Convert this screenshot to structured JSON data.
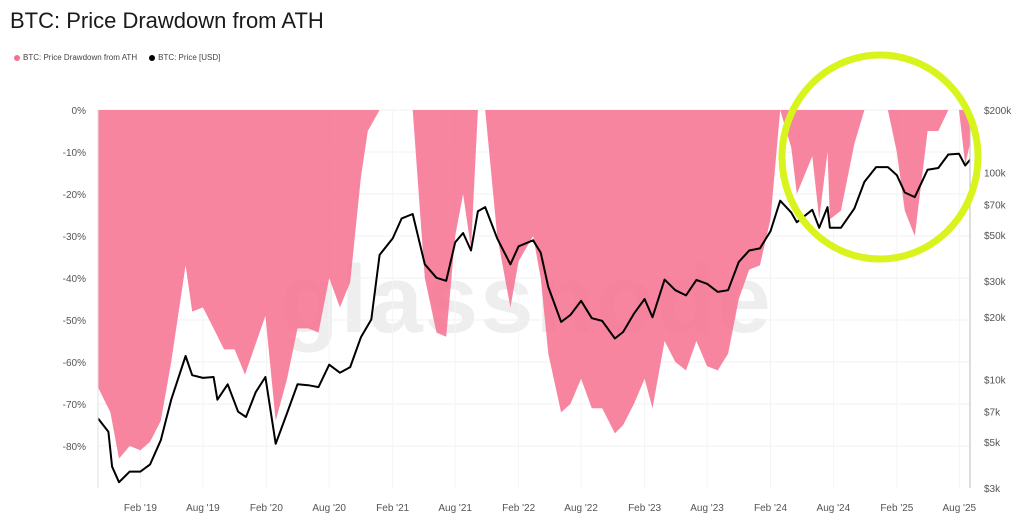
{
  "chart_data": {
    "type": "area",
    "title": "BTC: Price Drawdown from ATH",
    "legend": [
      {
        "label": "BTC: Price Drawdown from ATH",
        "color": "#f6708f"
      },
      {
        "label": "BTC: Price [USD]",
        "color": "#000000"
      }
    ],
    "x_ticks": [
      "Feb '19",
      "Aug '19",
      "Feb '20",
      "Aug '20",
      "Feb '21",
      "Aug '21",
      "Feb '22",
      "Aug '22",
      "Feb '23",
      "Aug '23",
      "Feb '24",
      "Aug '24",
      "Feb '25",
      "Aug '25"
    ],
    "y_left_ticks": [
      "0%",
      "-10%",
      "-20%",
      "-30%",
      "-40%",
      "-50%",
      "-60%",
      "-70%",
      "-80%"
    ],
    "y_right_ticks": [
      "$200k",
      "100k",
      "$70k",
      "$50k",
      "$30k",
      "$20k",
      "$10k",
      "$7k",
      "$5k",
      "$3k"
    ],
    "y_left_range": [
      -90,
      0
    ],
    "y_right_scale": "log",
    "y_right_range": [
      3000,
      200000
    ],
    "x_range": [
      "2018-10-15",
      "2025-09-15"
    ],
    "series": [
      {
        "name": "BTC: Price Drawdown from ATH",
        "unit": "%",
        "points": [
          [
            "2018-10-15",
            -66
          ],
          [
            "2018-11-20",
            -72
          ],
          [
            "2018-12-15",
            -83
          ],
          [
            "2019-01-15",
            -80
          ],
          [
            "2019-02-15",
            -81
          ],
          [
            "2019-03-15",
            -79
          ],
          [
            "2019-04-15",
            -74
          ],
          [
            "2019-05-15",
            -60
          ],
          [
            "2019-06-26",
            -37
          ],
          [
            "2019-07-15",
            -48
          ],
          [
            "2019-08-15",
            -47
          ],
          [
            "2019-09-15",
            -52
          ],
          [
            "2019-10-15",
            -57
          ],
          [
            "2019-11-15",
            -57
          ],
          [
            "2019-12-15",
            -63
          ],
          [
            "2020-02-12",
            -49
          ],
          [
            "2020-03-13",
            -74
          ],
          [
            "2020-04-15",
            -64
          ],
          [
            "2020-05-15",
            -52
          ],
          [
            "2020-06-15",
            -52
          ],
          [
            "2020-07-15",
            -53
          ],
          [
            "2020-08-15",
            -40
          ],
          [
            "2020-09-15",
            -47
          ],
          [
            "2020-10-15",
            -41
          ],
          [
            "2020-11-15",
            -16
          ],
          [
            "2020-12-05",
            -5
          ],
          [
            "2021-01-08",
            0
          ],
          [
            "2021-02-15",
            0
          ],
          [
            "2021-03-13",
            0
          ],
          [
            "2021-04-14",
            0
          ],
          [
            "2021-05-19",
            -40
          ],
          [
            "2021-06-22",
            -53
          ],
          [
            "2021-07-20",
            -54
          ],
          [
            "2021-08-15",
            -30
          ],
          [
            "2021-09-07",
            -20
          ],
          [
            "2021-09-30",
            -33
          ],
          [
            "2021-10-20",
            0
          ],
          [
            "2021-11-10",
            0
          ],
          [
            "2021-12-15",
            -30
          ],
          [
            "2022-01-22",
            -47
          ],
          [
            "2022-02-15",
            -36
          ],
          [
            "2022-03-29",
            -30
          ],
          [
            "2022-04-20",
            -40
          ],
          [
            "2022-05-12",
            -58
          ],
          [
            "2022-06-18",
            -72
          ],
          [
            "2022-07-15",
            -70
          ],
          [
            "2022-08-15",
            -64
          ],
          [
            "2022-09-15",
            -71
          ],
          [
            "2022-10-15",
            -71
          ],
          [
            "2022-11-21",
            -77
          ],
          [
            "2022-12-15",
            -75
          ],
          [
            "2023-01-15",
            -70
          ],
          [
            "2023-02-15",
            -64
          ],
          [
            "2023-03-10",
            -71
          ],
          [
            "2023-04-14",
            -55
          ],
          [
            "2023-05-15",
            -60
          ],
          [
            "2023-06-15",
            -62
          ],
          [
            "2023-07-15",
            -55
          ],
          [
            "2023-08-15",
            -61
          ],
          [
            "2023-09-15",
            -62
          ],
          [
            "2023-10-15",
            -58
          ],
          [
            "2023-11-15",
            -45
          ],
          [
            "2023-12-15",
            -38
          ],
          [
            "2024-01-15",
            -37
          ],
          [
            "2024-02-15",
            -26
          ],
          [
            "2024-03-14",
            0
          ],
          [
            "2024-04-15",
            -9
          ],
          [
            "2024-05-01",
            -20
          ],
          [
            "2024-06-15",
            -11
          ],
          [
            "2024-07-05",
            -26
          ],
          [
            "2024-07-29",
            -10
          ],
          [
            "2024-08-05",
            -26
          ],
          [
            "2024-09-06",
            -24
          ],
          [
            "2024-10-15",
            -8
          ],
          [
            "2024-11-13",
            0
          ],
          [
            "2024-12-17",
            0
          ],
          [
            "2025-01-20",
            0
          ],
          [
            "2025-02-15",
            -10
          ],
          [
            "2025-03-10",
            -24
          ],
          [
            "2025-04-08",
            -30
          ],
          [
            "2025-05-15",
            -5
          ],
          [
            "2025-06-15",
            -5
          ],
          [
            "2025-07-14",
            0
          ],
          [
            "2025-08-14",
            0
          ],
          [
            "2025-09-01",
            -13
          ],
          [
            "2025-09-15",
            -8
          ]
        ]
      },
      {
        "name": "BTC: Price [USD]",
        "unit": "USD",
        "points": [
          [
            "2018-10-15",
            6500
          ],
          [
            "2018-11-14",
            5600
          ],
          [
            "2018-11-25",
            3800
          ],
          [
            "2018-12-15",
            3200
          ],
          [
            "2019-01-15",
            3600
          ],
          [
            "2019-02-15",
            3600
          ],
          [
            "2019-03-15",
            3900
          ],
          [
            "2019-04-15",
            5100
          ],
          [
            "2019-05-15",
            8000
          ],
          [
            "2019-06-26",
            13000
          ],
          [
            "2019-07-15",
            10500
          ],
          [
            "2019-08-15",
            10200
          ],
          [
            "2019-09-15",
            10300
          ],
          [
            "2019-09-26",
            8000
          ],
          [
            "2019-10-26",
            9500
          ],
          [
            "2019-11-25",
            7000
          ],
          [
            "2019-12-18",
            6600
          ],
          [
            "2020-01-15",
            8700
          ],
          [
            "2020-02-12",
            10300
          ],
          [
            "2020-03-13",
            4900
          ],
          [
            "2020-04-15",
            6900
          ],
          [
            "2020-05-15",
            9500
          ],
          [
            "2020-06-15",
            9400
          ],
          [
            "2020-07-15",
            9200
          ],
          [
            "2020-08-15",
            11800
          ],
          [
            "2020-09-15",
            10800
          ],
          [
            "2020-10-15",
            11500
          ],
          [
            "2020-11-15",
            16000
          ],
          [
            "2020-12-15",
            19500
          ],
          [
            "2021-01-08",
            40000
          ],
          [
            "2021-02-15",
            48000
          ],
          [
            "2021-03-13",
            60000
          ],
          [
            "2021-04-14",
            63000
          ],
          [
            "2021-05-19",
            36000
          ],
          [
            "2021-06-22",
            31000
          ],
          [
            "2021-07-20",
            30000
          ],
          [
            "2021-08-15",
            46000
          ],
          [
            "2021-09-07",
            51000
          ],
          [
            "2021-09-30",
            42000
          ],
          [
            "2021-10-20",
            65000
          ],
          [
            "2021-11-10",
            68000
          ],
          [
            "2021-12-15",
            48000
          ],
          [
            "2022-01-22",
            36000
          ],
          [
            "2022-02-15",
            44000
          ],
          [
            "2022-03-29",
            47000
          ],
          [
            "2022-04-20",
            41000
          ],
          [
            "2022-05-12",
            28000
          ],
          [
            "2022-06-18",
            19000
          ],
          [
            "2022-07-15",
            20500
          ],
          [
            "2022-08-15",
            24000
          ],
          [
            "2022-09-15",
            19800
          ],
          [
            "2022-10-15",
            19200
          ],
          [
            "2022-11-21",
            15800
          ],
          [
            "2022-12-15",
            17000
          ],
          [
            "2023-01-15",
            20800
          ],
          [
            "2023-02-15",
            24500
          ],
          [
            "2023-03-10",
            20000
          ],
          [
            "2023-04-14",
            30400
          ],
          [
            "2023-05-15",
            27000
          ],
          [
            "2023-06-15",
            25500
          ],
          [
            "2023-07-15",
            30300
          ],
          [
            "2023-08-15",
            29000
          ],
          [
            "2023-09-15",
            26500
          ],
          [
            "2023-10-15",
            27000
          ],
          [
            "2023-11-15",
            37000
          ],
          [
            "2023-12-15",
            42000
          ],
          [
            "2024-01-15",
            43000
          ],
          [
            "2024-02-15",
            52000
          ],
          [
            "2024-03-14",
            73000
          ],
          [
            "2024-04-15",
            64000
          ],
          [
            "2024-05-01",
            57500
          ],
          [
            "2024-06-15",
            66000
          ],
          [
            "2024-07-05",
            54000
          ],
          [
            "2024-07-29",
            68000
          ],
          [
            "2024-08-05",
            54000
          ],
          [
            "2024-09-06",
            54000
          ],
          [
            "2024-10-15",
            67000
          ],
          [
            "2024-11-13",
            90000
          ],
          [
            "2024-12-17",
            106000
          ],
          [
            "2025-01-20",
            106000
          ],
          [
            "2025-02-15",
            97000
          ],
          [
            "2025-03-10",
            80000
          ],
          [
            "2025-04-08",
            76000
          ],
          [
            "2025-05-15",
            103000
          ],
          [
            "2025-06-15",
            105000
          ],
          [
            "2025-07-14",
            122000
          ],
          [
            "2025-08-14",
            123000
          ],
          [
            "2025-09-01",
            108000
          ],
          [
            "2025-09-15",
            115000
          ]
        ]
      }
    ],
    "annotation": {
      "shape": "ellipse",
      "color": "#d8f41c",
      "highlights": "2024-03-14 to 2025-09-15"
    },
    "watermark": "glassnode"
  }
}
